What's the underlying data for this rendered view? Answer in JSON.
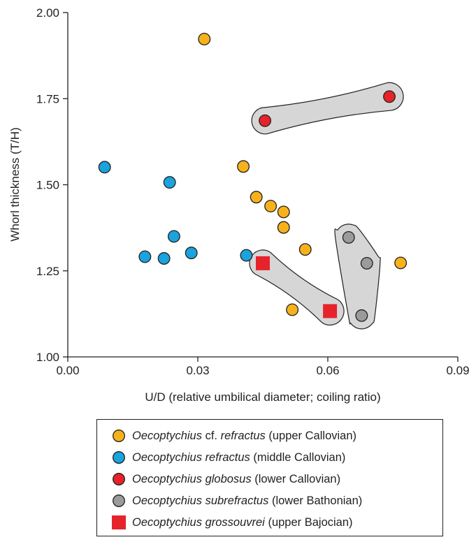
{
  "chart_data": {
    "type": "scatter",
    "xlabel": "U/D (relative umbilical diameter; coiling ratio)",
    "ylabel": "Whorl thickness (T/H)",
    "xlim": [
      0,
      0.09
    ],
    "ylim": [
      1.0,
      2.0
    ],
    "x_ticks": [
      "0.00",
      "0.03",
      "0.06",
      "0.09"
    ],
    "x_tick_values": [
      0,
      0.03,
      0.06,
      0.09
    ],
    "y_ticks": [
      "1.00",
      "1.25",
      "1.50",
      "1.75",
      "2.00"
    ],
    "y_tick_values": [
      1.0,
      1.25,
      1.5,
      1.75,
      2.0
    ],
    "grid": false,
    "legend_position": "bottom",
    "series": [
      {
        "key": "cf-refractus",
        "genus": "Oecoptychius",
        "qualifier": "cf.",
        "species": "refractus",
        "age": "(upper Callovian)",
        "marker": "circle",
        "color": "#f7b21b",
        "points": [
          [
            0.0315,
            1.923
          ],
          [
            0.0405,
            1.553
          ],
          [
            0.0435,
            1.464
          ],
          [
            0.0468,
            1.438
          ],
          [
            0.0498,
            1.421
          ],
          [
            0.0498,
            1.376
          ],
          [
            0.0548,
            1.312
          ],
          [
            0.0518,
            1.137
          ],
          [
            0.0768,
            1.273
          ]
        ]
      },
      {
        "key": "refractus",
        "genus": "Oecoptychius",
        "qualifier": "",
        "species": "refractus",
        "age": "(middle Callovian)",
        "marker": "circle",
        "color": "#1aa3dc",
        "points": [
          [
            0.0085,
            1.551
          ],
          [
            0.0235,
            1.507
          ],
          [
            0.0245,
            1.35
          ],
          [
            0.0285,
            1.302
          ],
          [
            0.0178,
            1.291
          ],
          [
            0.0222,
            1.286
          ],
          [
            0.0412,
            1.295
          ]
        ]
      },
      {
        "key": "globosus",
        "genus": "Oecoptychius",
        "qualifier": "",
        "species": "globosus",
        "age": "(lower Callovian)",
        "marker": "circle",
        "color": "#e6232b",
        "points": [
          [
            0.0455,
            1.686
          ],
          [
            0.0742,
            1.756
          ]
        ]
      },
      {
        "key": "subrefractus",
        "genus": "Oecoptychius",
        "qualifier": "",
        "species": "subrefractus",
        "age": "(lower Bathonian)",
        "marker": "circle",
        "color": "#9b9b9b",
        "points": [
          [
            0.0648,
            1.347
          ],
          [
            0.069,
            1.272
          ],
          [
            0.0678,
            1.12
          ]
        ]
      },
      {
        "key": "grossouvrei",
        "genus": "Oecoptychius",
        "qualifier": "",
        "species": "grossouvrei",
        "age": "(upper Bajocian)",
        "marker": "square",
        "color": "#e6232b",
        "points": [
          [
            0.045,
            1.272
          ],
          [
            0.0605,
            1.133
          ]
        ]
      }
    ],
    "hulls": {
      "fill": "#d6d6d6",
      "groups": [
        "globosus",
        "subrefractus",
        "grossouvrei"
      ]
    }
  }
}
